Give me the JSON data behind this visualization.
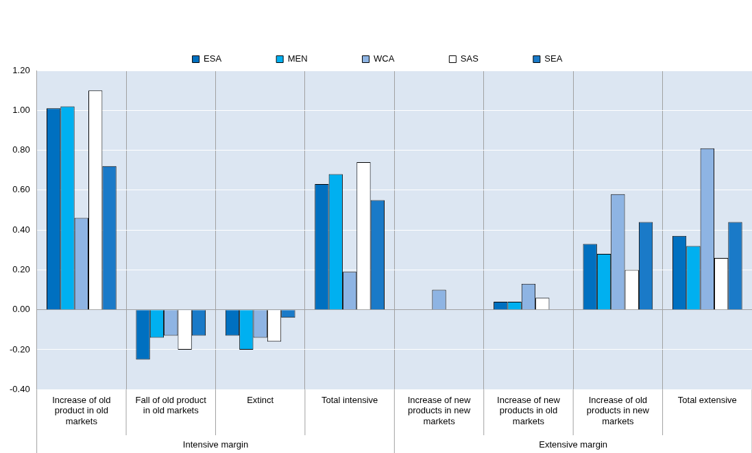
{
  "chart_data": {
    "type": "bar",
    "categories": [
      "Increase of old product in old markets",
      "Fall of old product in old markets",
      "Extinct",
      "Total intensive",
      "Increase of new products in new markets",
      "Increase of new products in old markets",
      "Increase of old products in new markets",
      "Total extensive"
    ],
    "series": [
      {
        "name": "ESA",
        "color": "#0070c0",
        "values": [
          1.01,
          -0.25,
          -0.13,
          0.63,
          null,
          0.04,
          0.33,
          0.37
        ]
      },
      {
        "name": "MEN",
        "color": "#00b0f0",
        "values": [
          1.02,
          -0.14,
          -0.2,
          0.68,
          null,
          0.04,
          0.28,
          0.32
        ]
      },
      {
        "name": "WCA",
        "color": "#8eb4e3",
        "values": [
          0.46,
          -0.13,
          -0.14,
          0.19,
          0.1,
          0.13,
          0.58,
          0.81
        ]
      },
      {
        "name": "SAS",
        "color": "#ffffff",
        "values": [
          1.1,
          -0.2,
          -0.16,
          0.74,
          null,
          0.06,
          0.2,
          0.26
        ]
      },
      {
        "name": "SEA",
        "color": "#1a7ac8",
        "values": [
          0.72,
          -0.13,
          -0.04,
          0.55,
          null,
          null,
          0.44,
          0.44
        ]
      }
    ],
    "ylim": [
      -0.4,
      1.2
    ],
    "yticks": [
      {
        "value": -0.4,
        "label": "-0.40"
      },
      {
        "value": -0.2,
        "label": "-0.20"
      },
      {
        "value": 0,
        "label": "0.00"
      },
      {
        "value": 0.2,
        "label": "0.20"
      },
      {
        "value": 0.4,
        "label": "0.40"
      },
      {
        "value": 0.6,
        "label": "0.60"
      },
      {
        "value": 0.8,
        "label": "0.80"
      },
      {
        "value": 1,
        "label": "1.00"
      },
      {
        "value": 1.2,
        "label": "1.20"
      }
    ],
    "grid": true,
    "legend": "top",
    "annotations": [
      "Intensive margin",
      "Extensive margin"
    ]
  }
}
